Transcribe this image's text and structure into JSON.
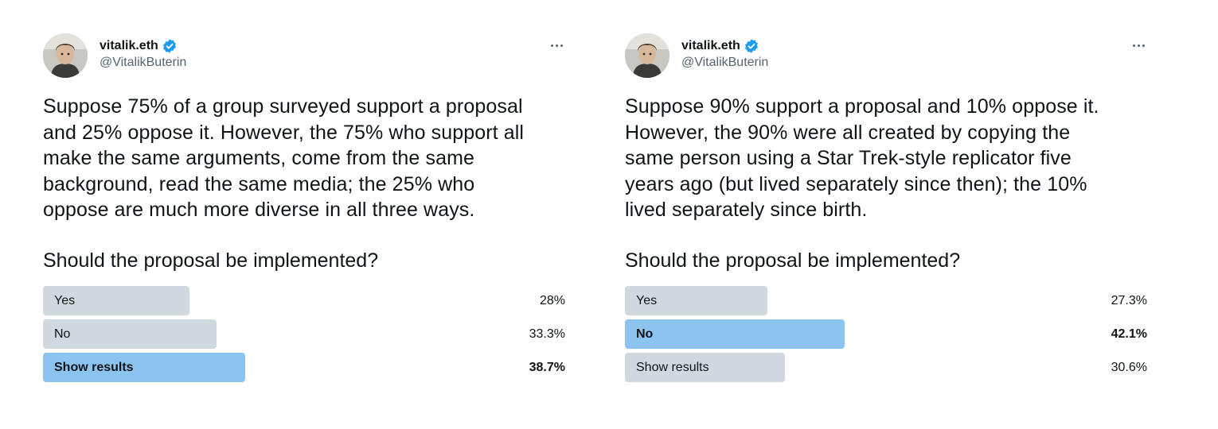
{
  "tweets": [
    {
      "author": {
        "display_name": "vitalik.eth",
        "handle": "@VitalikButerin",
        "verified": true,
        "avatar_icon": "profile-photo"
      },
      "text": "Suppose 75% of a group surveyed support a proposal\nand 25% oppose it. However, the 75% who support all\nmake the same arguments, come from the same\nbackground, read the same media; the 25% who\noppose are much more diverse in all three ways.",
      "question": "Should the proposal be implemented?",
      "poll": {
        "options": [
          {
            "label": "Yes",
            "percent_label": "28%",
            "percent": 28.0,
            "winner": false
          },
          {
            "label": "No",
            "percent_label": "33.3%",
            "percent": 33.3,
            "winner": false
          },
          {
            "label": "Show results",
            "percent_label": "38.7%",
            "percent": 38.7,
            "winner": true
          }
        ]
      }
    },
    {
      "author": {
        "display_name": "vitalik.eth",
        "handle": "@VitalikButerin",
        "verified": true,
        "avatar_icon": "profile-photo"
      },
      "text": "Suppose 90% support a proposal and 10% oppose it.\nHowever, the 90% were all created by copying the\nsame person using a Star Trek-style replicator five\nyears ago (but lived separately since then); the 10%\nlived separately since birth.",
      "question": "Should the proposal be implemented?",
      "poll": {
        "options": [
          {
            "label": "Yes",
            "percent_label": "27.3%",
            "percent": 27.3,
            "winner": false
          },
          {
            "label": "No",
            "percent_label": "42.1%",
            "percent": 42.1,
            "winner": true
          },
          {
            "label": "Show results",
            "percent_label": "30.6%",
            "percent": 30.6,
            "winner": false
          }
        ]
      }
    }
  ],
  "colors": {
    "text": "#0f1419",
    "secondary_text": "#536471",
    "bar_default": "#cfd9de",
    "bar_winner": "#8cc4f0",
    "verified": "#1d9bf0"
  }
}
